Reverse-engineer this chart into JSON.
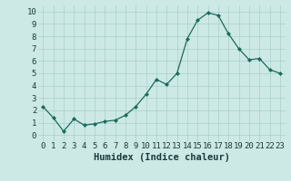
{
  "x": [
    0,
    1,
    2,
    3,
    4,
    5,
    6,
    7,
    8,
    9,
    10,
    11,
    12,
    13,
    14,
    15,
    16,
    17,
    18,
    19,
    20,
    21,
    22,
    23
  ],
  "y": [
    2.3,
    1.4,
    0.3,
    1.3,
    0.8,
    0.9,
    1.1,
    1.2,
    1.6,
    2.3,
    3.3,
    4.5,
    4.1,
    5.0,
    7.8,
    9.3,
    9.9,
    9.7,
    8.2,
    7.0,
    6.1,
    6.2,
    5.3,
    5.0
  ],
  "line_color": "#1a6b5a",
  "marker": "D",
  "markersize": 2.0,
  "linewidth": 0.9,
  "bg_color": "#cce9e5",
  "grid_color": "#aacfcc",
  "xlabel": "Humidex (Indice chaleur)",
  "xlabel_fontsize": 7.5,
  "tick_fontsize": 6.5,
  "ylim": [
    -0.5,
    10.5
  ],
  "xlim": [
    -0.5,
    23.5
  ],
  "yticks": [
    0,
    1,
    2,
    3,
    4,
    5,
    6,
    7,
    8,
    9,
    10
  ],
  "xticks": [
    0,
    1,
    2,
    3,
    4,
    5,
    6,
    7,
    8,
    9,
    10,
    11,
    12,
    13,
    14,
    15,
    16,
    17,
    18,
    19,
    20,
    21,
    22,
    23
  ]
}
